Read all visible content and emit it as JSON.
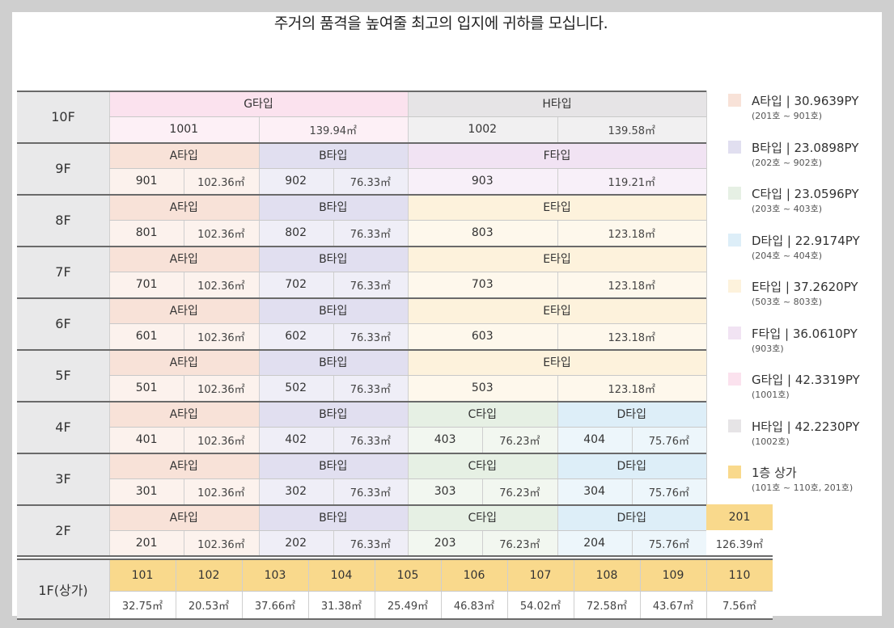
{
  "title": "주거의 품격을 높여줄 최고의 입지에 귀하를 모십니다.",
  "colors": {
    "A": {
      "head": "#f8e2d8",
      "body": "#fcf2ed"
    },
    "B": {
      "head": "#e1dff0",
      "body": "#efeef7"
    },
    "C": {
      "head": "#e6f0e4",
      "body": "#f2f7f0"
    },
    "D": {
      "head": "#ddeef8",
      "body": "#edf6fb"
    },
    "E": {
      "head": "#fdf2dc",
      "body": "#fef8ec"
    },
    "F": {
      "head": "#f1e3f3",
      "body": "#f8f0f9"
    },
    "G": {
      "head": "#fbe2ee",
      "body": "#fdf0f6"
    },
    "H": {
      "head": "#e6e4e6",
      "body": "#f1f0f1"
    },
    "S": {
      "head": "#f9d98c",
      "body": "#ffffff"
    }
  },
  "floors": [
    {
      "label": "10F",
      "groups": [
        {
          "type": "G",
          "name": "G타입",
          "span": 2,
          "units": [
            {
              "no": "1001",
              "area": "139.94㎡",
              "wide": true
            }
          ]
        },
        {
          "type": "H",
          "name": "H타입",
          "span": 2,
          "units": [
            {
              "no": "1002",
              "area": "139.58㎡",
              "wide": true
            }
          ]
        }
      ]
    },
    {
      "label": "9F",
      "groups": [
        {
          "type": "A",
          "name": "A타입",
          "span": 1,
          "units": [
            {
              "no": "901",
              "area": "102.36㎡"
            }
          ]
        },
        {
          "type": "B",
          "name": "B타입",
          "span": 1,
          "units": [
            {
              "no": "902",
              "area": "76.33㎡"
            }
          ]
        },
        {
          "type": "F",
          "name": "F타입",
          "span": 2,
          "units": [
            {
              "no": "903",
              "area": "119.21㎡",
              "wide": true
            }
          ]
        }
      ]
    },
    {
      "label": "8F",
      "groups": [
        {
          "type": "A",
          "name": "A타입",
          "span": 1,
          "units": [
            {
              "no": "801",
              "area": "102.36㎡"
            }
          ]
        },
        {
          "type": "B",
          "name": "B타입",
          "span": 1,
          "units": [
            {
              "no": "802",
              "area": "76.33㎡"
            }
          ]
        },
        {
          "type": "E",
          "name": "E타입",
          "span": 2,
          "units": [
            {
              "no": "803",
              "area": "123.18㎡",
              "wide": true
            }
          ]
        }
      ]
    },
    {
      "label": "7F",
      "groups": [
        {
          "type": "A",
          "name": "A타입",
          "span": 1,
          "units": [
            {
              "no": "701",
              "area": "102.36㎡"
            }
          ]
        },
        {
          "type": "B",
          "name": "B타입",
          "span": 1,
          "units": [
            {
              "no": "702",
              "area": "76.33㎡"
            }
          ]
        },
        {
          "type": "E",
          "name": "E타입",
          "span": 2,
          "units": [
            {
              "no": "703",
              "area": "123.18㎡",
              "wide": true
            }
          ]
        }
      ]
    },
    {
      "label": "6F",
      "groups": [
        {
          "type": "A",
          "name": "A타입",
          "span": 1,
          "units": [
            {
              "no": "601",
              "area": "102.36㎡"
            }
          ]
        },
        {
          "type": "B",
          "name": "B타입",
          "span": 1,
          "units": [
            {
              "no": "602",
              "area": "76.33㎡"
            }
          ]
        },
        {
          "type": "E",
          "name": "E타입",
          "span": 2,
          "units": [
            {
              "no": "603",
              "area": "123.18㎡",
              "wide": true
            }
          ]
        }
      ]
    },
    {
      "label": "5F",
      "groups": [
        {
          "type": "A",
          "name": "A타입",
          "span": 1,
          "units": [
            {
              "no": "501",
              "area": "102.36㎡"
            }
          ]
        },
        {
          "type": "B",
          "name": "B타입",
          "span": 1,
          "units": [
            {
              "no": "502",
              "area": "76.33㎡"
            }
          ]
        },
        {
          "type": "E",
          "name": "E타입",
          "span": 2,
          "units": [
            {
              "no": "503",
              "area": "123.18㎡",
              "wide": true
            }
          ]
        }
      ]
    },
    {
      "label": "4F",
      "groups": [
        {
          "type": "A",
          "name": "A타입",
          "span": 1,
          "units": [
            {
              "no": "401",
              "area": "102.36㎡"
            }
          ]
        },
        {
          "type": "B",
          "name": "B타입",
          "span": 1,
          "units": [
            {
              "no": "402",
              "area": "76.33㎡"
            }
          ]
        },
        {
          "type": "C",
          "name": "C타입",
          "span": 1,
          "units": [
            {
              "no": "403",
              "area": "76.23㎡"
            }
          ]
        },
        {
          "type": "D",
          "name": "D타입",
          "span": 1,
          "units": [
            {
              "no": "404",
              "area": "75.76㎡"
            }
          ]
        }
      ]
    },
    {
      "label": "3F",
      "groups": [
        {
          "type": "A",
          "name": "A타입",
          "span": 1,
          "units": [
            {
              "no": "301",
              "area": "102.36㎡"
            }
          ]
        },
        {
          "type": "B",
          "name": "B타입",
          "span": 1,
          "units": [
            {
              "no": "302",
              "area": "76.33㎡"
            }
          ]
        },
        {
          "type": "C",
          "name": "C타입",
          "span": 1,
          "units": [
            {
              "no": "303",
              "area": "76.23㎡"
            }
          ]
        },
        {
          "type": "D",
          "name": "D타입",
          "span": 1,
          "units": [
            {
              "no": "304",
              "area": "75.76㎡"
            }
          ]
        }
      ]
    },
    {
      "label": "2F",
      "groups": [
        {
          "type": "A",
          "name": "A타입",
          "span": 1,
          "units": [
            {
              "no": "201",
              "area": "102.36㎡"
            }
          ]
        },
        {
          "type": "B",
          "name": "B타입",
          "span": 1,
          "units": [
            {
              "no": "202",
              "area": "76.33㎡"
            }
          ]
        },
        {
          "type": "C",
          "name": "C타입",
          "span": 1,
          "units": [
            {
              "no": "203",
              "area": "76.23㎡"
            }
          ]
        },
        {
          "type": "D",
          "name": "D타입",
          "span": 1,
          "units": [
            {
              "no": "204",
              "area": "75.76㎡"
            }
          ]
        }
      ],
      "extra": {
        "no": "201",
        "area": "126.39㎡"
      }
    }
  ],
  "ground": {
    "label": "1F(상가)",
    "units": [
      {
        "no": "101",
        "area": "32.75㎡"
      },
      {
        "no": "102",
        "area": "20.53㎡"
      },
      {
        "no": "103",
        "area": "37.66㎡"
      },
      {
        "no": "104",
        "area": "31.38㎡"
      },
      {
        "no": "105",
        "area": "25.49㎡"
      },
      {
        "no": "106",
        "area": "46.83㎡"
      },
      {
        "no": "107",
        "area": "54.02㎡"
      },
      {
        "no": "108",
        "area": "72.58㎡"
      },
      {
        "no": "109",
        "area": "43.67㎡"
      },
      {
        "no": "110",
        "area": "7.56㎡"
      }
    ]
  },
  "legend": [
    {
      "type": "A",
      "title": "A타입 | 30.9639PY",
      "sub": "(201호 ~ 901호)"
    },
    {
      "type": "B",
      "title": "B타입 | 23.0898PY",
      "sub": "(202호 ~ 902호)"
    },
    {
      "type": "C",
      "title": "C타입 | 23.0596PY",
      "sub": "(203호 ~ 403호)"
    },
    {
      "type": "D",
      "title": "D타입 | 22.9174PY",
      "sub": "(204호 ~ 404호)"
    },
    {
      "type": "E",
      "title": "E타입 | 37.2620PY",
      "sub": "(503호 ~ 803호)"
    },
    {
      "type": "F",
      "title": "F타입 | 36.0610PY",
      "sub": "(903호)"
    },
    {
      "type": "G",
      "title": "G타입 | 42.3319PY",
      "sub": "(1001호)"
    },
    {
      "type": "H",
      "title": "H타입 | 42.2230PY",
      "sub": "(1002호)"
    },
    {
      "type": "S",
      "title": "1층 상가",
      "sub": "(101호 ~ 110호, 201호)"
    }
  ]
}
